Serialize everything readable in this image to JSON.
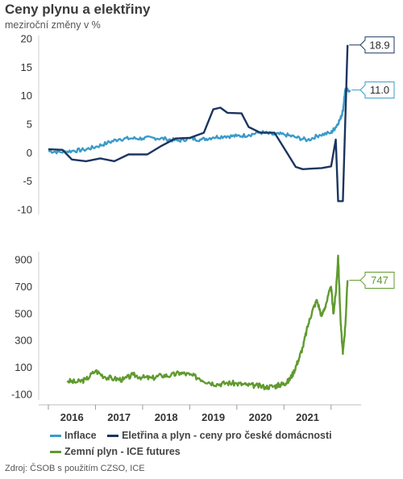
{
  "title": "Ceny plynu a elektřiny",
  "subtitle": "meziroční změny v %",
  "source": "Zdroj: ČSOB s použitím CZSO, ICE",
  "colors": {
    "inflace": "#3b9bc8",
    "elektrina": "#1b3560",
    "plyn": "#5f9a2e"
  },
  "chart_data": [
    {
      "type": "line",
      "title": "",
      "ylabel": "meziroční změny v %",
      "ylim": [
        -12,
        21
      ],
      "yticks": [
        20,
        15,
        10,
        5,
        0,
        -5,
        -10
      ],
      "grid": false,
      "legend": "bottom",
      "series": [
        {
          "name": "Inflace",
          "color": "#3b9bc8",
          "x": [
            2015.5,
            2015.75,
            2016,
            2016.25,
            2016.5,
            2016.75,
            2017,
            2017.25,
            2017.5,
            2017.75,
            2018,
            2018.25,
            2018.5,
            2018.75,
            2019,
            2019.25,
            2019.5,
            2019.75,
            2020,
            2020.25,
            2020.5,
            2020.75,
            2021,
            2021.25,
            2021.5,
            2021.6,
            2021.7,
            2021.75,
            2021.8,
            2021.9
          ],
          "values": [
            0.3,
            0.1,
            0.3,
            0.5,
            1.0,
            1.7,
            2.4,
            2.5,
            2.5,
            2.6,
            2.4,
            2.1,
            2.5,
            2.3,
            2.7,
            2.9,
            2.9,
            3.1,
            3.6,
            3.2,
            3.2,
            2.7,
            2.2,
            3.1,
            3.5,
            4.5,
            6.0,
            7.3,
            11.0,
            11.0
          ],
          "end_label": "11.0"
        },
        {
          "name": "Eletřina a plyn - ceny pro české domácnosti",
          "color": "#1b3560",
          "x": [
            2015.5,
            2015.8,
            2016,
            2016.3,
            2016.6,
            2016.9,
            2017.2,
            2017.6,
            2017.9,
            2018.2,
            2018.5,
            2018.8,
            2019,
            2019.15,
            2019.3,
            2019.6,
            2019.75,
            2020,
            2020.3,
            2020.6,
            2020.75,
            2020.9,
            2021.1,
            2021.3,
            2021.5,
            2021.6,
            2021.65,
            2021.75,
            2021.85
          ],
          "values": [
            0.6,
            0.5,
            -1.2,
            -1.5,
            -1.0,
            -1.5,
            -0.3,
            -0.3,
            1.2,
            2.5,
            2.6,
            3.5,
            7.6,
            7.9,
            7.0,
            6.9,
            4.5,
            3.5,
            3.5,
            -0.5,
            -2.5,
            -2.9,
            -2.8,
            -2.7,
            -2.4,
            2.3,
            -8.5,
            -8.5,
            18.9
          ],
          "end_label": "18.9"
        }
      ]
    },
    {
      "type": "line",
      "title": "",
      "ylim": [
        -140,
        1000
      ],
      "yticks": [
        900,
        700,
        500,
        300,
        100,
        -100
      ],
      "grid": false,
      "legend": "bottom",
      "xlabels": [
        "2016",
        "2017",
        "2018",
        "2019",
        "2020",
        "2021"
      ],
      "series": [
        {
          "name": "Zemní plyn - ICE futures",
          "color": "#5f9a2e",
          "x": [
            2015.9,
            2016.1,
            2016.3,
            2016.5,
            2016.7,
            2016.9,
            2017.1,
            2017.3,
            2017.5,
            2017.7,
            2017.9,
            2018.1,
            2018.3,
            2018.5,
            2018.7,
            2018.9,
            2019.1,
            2019.3,
            2019.5,
            2019.7,
            2019.9,
            2020.1,
            2020.3,
            2020.4,
            2020.5,
            2020.6,
            2020.7,
            2020.8,
            2020.9,
            2021.0,
            2021.1,
            2021.2,
            2021.3,
            2021.4,
            2021.5,
            2021.55,
            2021.6,
            2021.65,
            2021.7,
            2021.75,
            2021.8,
            2021.85
          ],
          "values": [
            0,
            -10,
            10,
            75,
            30,
            15,
            10,
            45,
            25,
            20,
            40,
            40,
            60,
            45,
            20,
            -10,
            -25,
            -15,
            -20,
            -30,
            -35,
            -45,
            -40,
            -30,
            -20,
            0,
            60,
            150,
            250,
            400,
            520,
            600,
            480,
            580,
            700,
            500,
            650,
            930,
            450,
            200,
            400,
            747
          ],
          "end_label": "747"
        }
      ]
    }
  ]
}
